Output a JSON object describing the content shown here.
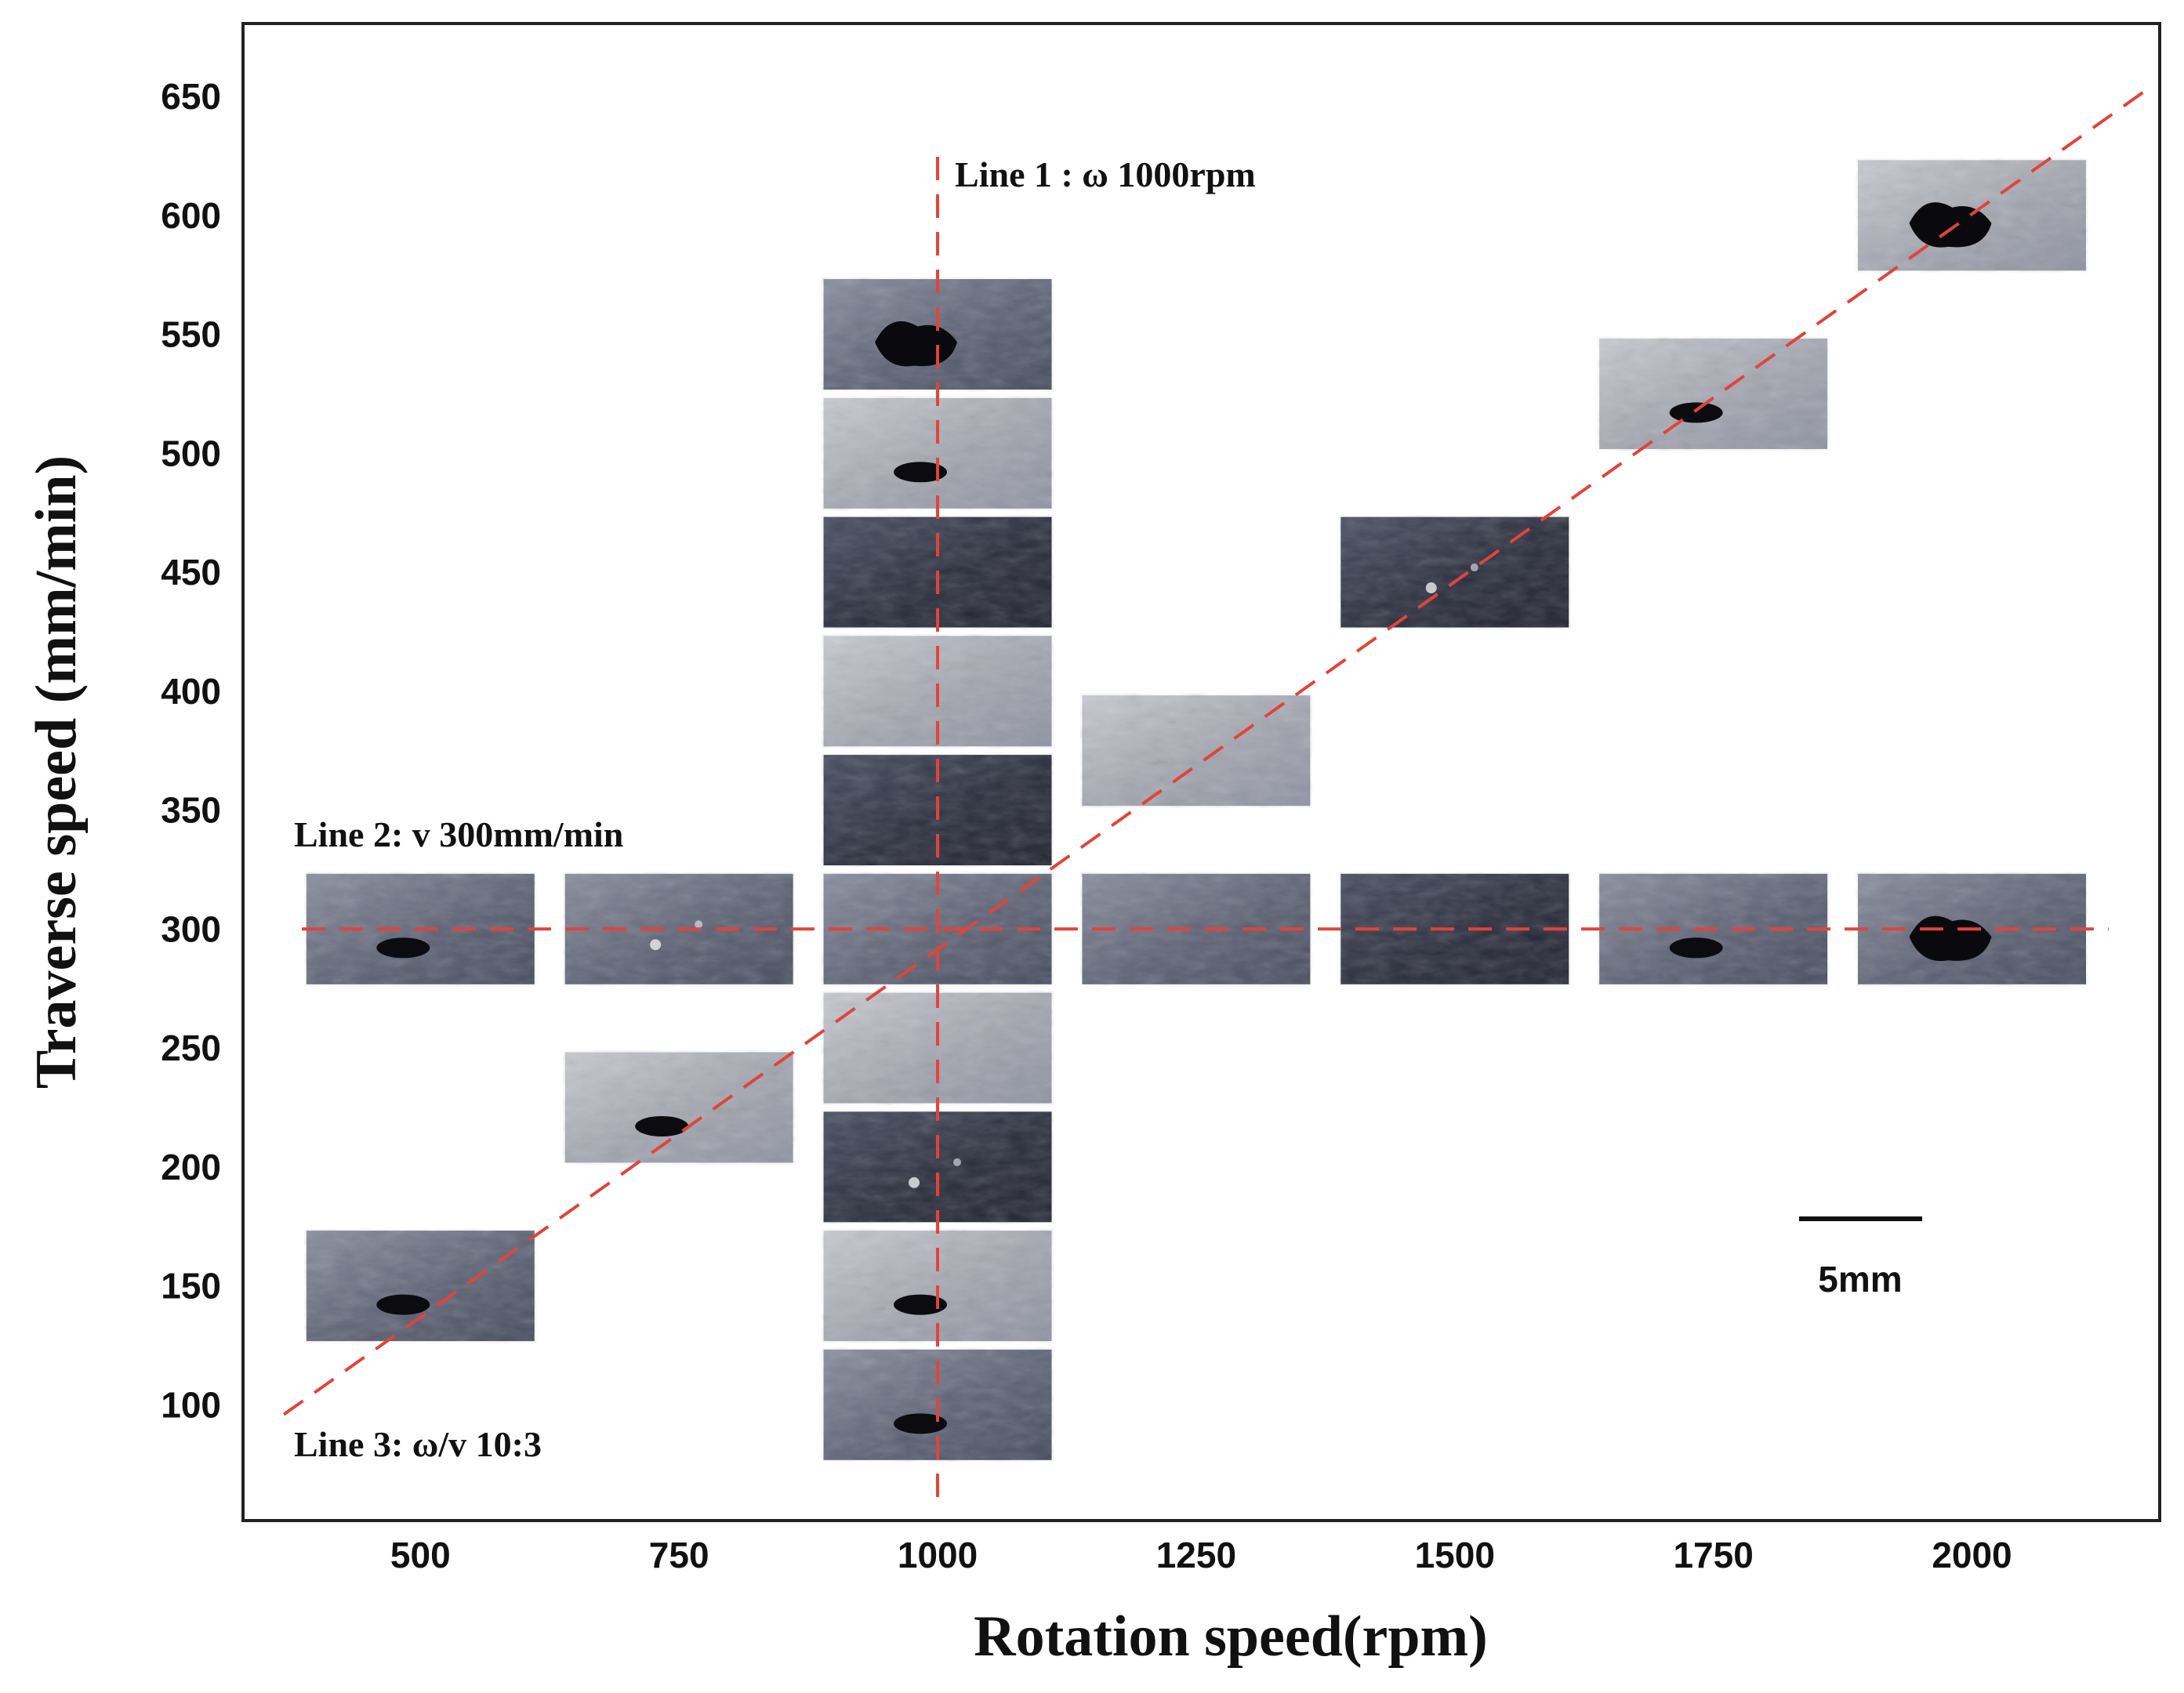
{
  "chart_data": {
    "type": "scatter",
    "title": "",
    "xlabel": "Rotation speed(rpm)",
    "ylabel": "Traverse speed (mm/min)",
    "xlim": [
      330,
      2180
    ],
    "ylim": [
      52,
      680
    ],
    "x_ticks": [
      "500",
      "750",
      "1000",
      "1250",
      "1500",
      "1750",
      "2000"
    ],
    "y_ticks": [
      "100",
      "150",
      "200",
      "250",
      "300",
      "350",
      "400",
      "450",
      "500",
      "550",
      "600",
      "650"
    ],
    "grid": false,
    "colors": {
      "axis": "#222222",
      "reference_lines": "#e0443c",
      "sample_light": "#b4b6bd",
      "sample_dark": "#2a2d3c"
    },
    "reference_lines": [
      {
        "label": "Line 1 : ω 1000rpm",
        "orientation": "vertical",
        "x": 1000
      },
      {
        "label": "Line 2: v  300mm/min",
        "orientation": "horizontal",
        "y": 300
      },
      {
        "label": "Line 3: ω/v 10:3",
        "orientation": "diagonal",
        "from": [
          330,
          90
        ],
        "to": [
          2170,
          650
        ]
      }
    ],
    "samples": [
      {
        "rpm": 1000,
        "mm_min": 100,
        "tone": "mid",
        "defect": "void"
      },
      {
        "rpm": 1000,
        "mm_min": 150,
        "tone": "light",
        "defect": "void"
      },
      {
        "rpm": 1000,
        "mm_min": 200,
        "tone": "dark",
        "defect": "minor"
      },
      {
        "rpm": 1000,
        "mm_min": 250,
        "tone": "light",
        "defect": "none"
      },
      {
        "rpm": 1000,
        "mm_min": 300,
        "tone": "mid",
        "defect": "none"
      },
      {
        "rpm": 1000,
        "mm_min": 350,
        "tone": "dark",
        "defect": "none"
      },
      {
        "rpm": 1000,
        "mm_min": 400,
        "tone": "light",
        "defect": "none"
      },
      {
        "rpm": 1000,
        "mm_min": 450,
        "tone": "dark",
        "defect": "none"
      },
      {
        "rpm": 1000,
        "mm_min": 500,
        "tone": "light",
        "defect": "void"
      },
      {
        "rpm": 1000,
        "mm_min": 550,
        "tone": "mid",
        "defect": "large-void"
      },
      {
        "rpm": 500,
        "mm_min": 300,
        "tone": "mid",
        "defect": "void"
      },
      {
        "rpm": 750,
        "mm_min": 300,
        "tone": "mid",
        "defect": "minor"
      },
      {
        "rpm": 1250,
        "mm_min": 300,
        "tone": "mid",
        "defect": "none"
      },
      {
        "rpm": 1500,
        "mm_min": 300,
        "tone": "dark",
        "defect": "none"
      },
      {
        "rpm": 1750,
        "mm_min": 300,
        "tone": "mid",
        "defect": "void"
      },
      {
        "rpm": 2000,
        "mm_min": 300,
        "tone": "mid",
        "defect": "large-void"
      },
      {
        "rpm": 500,
        "mm_min": 150,
        "tone": "mid",
        "defect": "void"
      },
      {
        "rpm": 750,
        "mm_min": 225,
        "tone": "light",
        "defect": "void"
      },
      {
        "rpm": 1250,
        "mm_min": 375,
        "tone": "light",
        "defect": "none"
      },
      {
        "rpm": 1500,
        "mm_min": 450,
        "tone": "dark",
        "defect": "minor"
      },
      {
        "rpm": 1750,
        "mm_min": 525,
        "tone": "light",
        "defect": "void"
      },
      {
        "rpm": 2000,
        "mm_min": 600,
        "tone": "light",
        "defect": "large-void"
      }
    ],
    "scale_bar": {
      "label": "5mm"
    }
  }
}
